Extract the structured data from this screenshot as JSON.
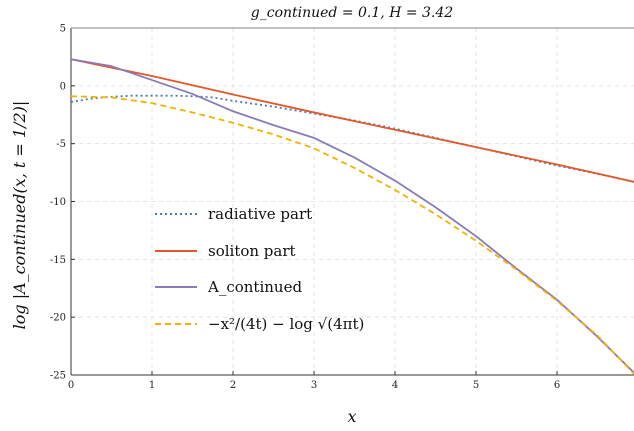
{
  "chart_data": {
    "type": "line",
    "title": "g_continued = 0.1, H = 3.42",
    "xlabel": "x",
    "ylabel": "log |A_continued(x, t = 1/2)|",
    "xlim": [
      0,
      6.95
    ],
    "ylim": [
      -25,
      5
    ],
    "xticks": [
      "0",
      "1",
      "2",
      "3",
      "4",
      "5",
      "6"
    ],
    "yticks": [
      "5",
      "0",
      "-5",
      "-10",
      "-15",
      "-20",
      "-25"
    ],
    "grid": true,
    "legend_position": "lower-left",
    "series": [
      {
        "name": "radiative part",
        "color": "#4a7bb7",
        "style": "dotted",
        "x": [
          0,
          0.25,
          0.5,
          0.75,
          1.0,
          1.25,
          1.5,
          1.75,
          2.0,
          2.5,
          3.0,
          3.5,
          4.0,
          4.5,
          5.0,
          5.5,
          6.0,
          6.5,
          6.95
        ],
        "y": [
          -1.4,
          -1.1,
          -0.95,
          -0.85,
          -0.85,
          -0.85,
          -0.9,
          -1.0,
          -1.3,
          -1.8,
          -2.4,
          -3.0,
          -3.7,
          -4.5,
          -5.3,
          -6.1,
          -6.9,
          -7.6,
          -8.3
        ]
      },
      {
        "name": "soliton part",
        "color": "#e2582b",
        "style": "solid",
        "x": [
          0,
          1,
          2,
          3,
          4,
          5,
          6,
          6.95
        ],
        "y": [
          2.3,
          0.85,
          -0.75,
          -2.3,
          -3.8,
          -5.3,
          -6.8,
          -8.3
        ]
      },
      {
        "name": "A_continued",
        "color": "#8a7ab8",
        "style": "solid",
        "x": [
          0,
          0.5,
          1.0,
          1.5,
          2.0,
          2.5,
          3.0,
          3.5,
          4.0,
          4.5,
          5.0,
          5.5,
          6.0,
          6.5,
          6.95
        ],
        "y": [
          2.3,
          1.7,
          0.5,
          -0.7,
          -2.2,
          -3.4,
          -4.5,
          -6.2,
          -8.2,
          -10.5,
          -13.0,
          -15.8,
          -18.5,
          -21.7,
          -24.8
        ]
      },
      {
        "name": "-x^2/(4t) - log sqrt(4 pi t)",
        "color": "#f0b400",
        "style": "dashed",
        "x": [
          0,
          0.5,
          1.0,
          1.5,
          2.0,
          2.5,
          3.0,
          3.5,
          4.0,
          4.5,
          5.0,
          5.5,
          6.0,
          6.5,
          6.95
        ],
        "y": [
          -0.9,
          -1.0,
          -1.5,
          -2.3,
          -3.2,
          -4.2,
          -5.4,
          -7.1,
          -9.0,
          -11.1,
          -13.4,
          -15.9,
          -18.6,
          -21.6,
          -24.9
        ]
      }
    ]
  },
  "legend": {
    "labels": [
      "radiative part",
      "soliton part",
      "A_continued",
      "−x²/(4t) − log √(4πt)"
    ]
  }
}
